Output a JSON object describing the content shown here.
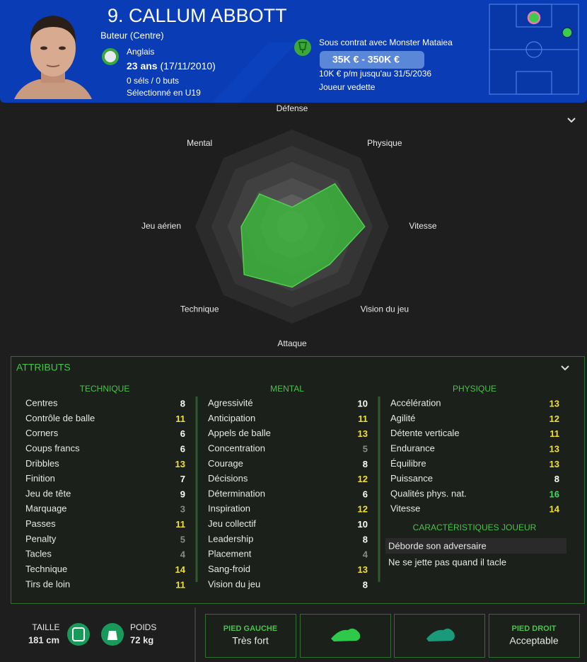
{
  "header": {
    "name": "9. CALLUM ABBOTT",
    "position": "Buteur (Centre)",
    "nationality": "Anglais",
    "age": "23 ans",
    "birth": "(17/11/2010)",
    "caps": "0 séls / 0 buts",
    "selection": "Sélectionné en U19",
    "contract": "Sous contrat avec Monster Mataiea",
    "wage_range": "35K € - 350K €",
    "wage": "10K € p/m jusqu'au 31/5/2036",
    "status": "Joueur vedette"
  },
  "radar": {
    "type": "radar",
    "axes": [
      "Défense",
      "Physique",
      "Vitesse",
      "Vision du jeu",
      "Attaque",
      "Technique",
      "Jeu aérien",
      "Mental"
    ],
    "values": [
      4,
      12.5,
      15,
      11,
      12.5,
      14,
      10.5,
      9.5
    ],
    "rlim": [
      0,
      20
    ],
    "color": "#3cb43c"
  },
  "attributes": {
    "title": "ATTRIBUTS",
    "columns": [
      {
        "title": "TECHNIQUE",
        "rows": [
          {
            "name": "Centres",
            "value": 8
          },
          {
            "name": "Contrôle de balle",
            "value": 11
          },
          {
            "name": "Corners",
            "value": 6
          },
          {
            "name": "Coups francs",
            "value": 6
          },
          {
            "name": "Dribbles",
            "value": 13
          },
          {
            "name": "Finition",
            "value": 7
          },
          {
            "name": "Jeu de tête",
            "value": 9
          },
          {
            "name": "Marquage",
            "value": 3
          },
          {
            "name": "Passes",
            "value": 11
          },
          {
            "name": "Penalty",
            "value": 5
          },
          {
            "name": "Tacles",
            "value": 4
          },
          {
            "name": "Technique",
            "value": 14
          },
          {
            "name": "Tirs de loin",
            "value": 11
          }
        ]
      },
      {
        "title": "MENTAL",
        "rows": [
          {
            "name": "Agressivité",
            "value": 10
          },
          {
            "name": "Anticipation",
            "value": 11
          },
          {
            "name": "Appels de balle",
            "value": 13
          },
          {
            "name": "Concentration",
            "value": 5
          },
          {
            "name": "Courage",
            "value": 8
          },
          {
            "name": "Décisions",
            "value": 12
          },
          {
            "name": "Détermination",
            "value": 6
          },
          {
            "name": "Inspiration",
            "value": 12
          },
          {
            "name": "Jeu collectif",
            "value": 10
          },
          {
            "name": "Leadership",
            "value": 8
          },
          {
            "name": "Placement",
            "value": 4
          },
          {
            "name": "Sang-froid",
            "value": 13
          },
          {
            "name": "Vision du jeu",
            "value": 8
          }
        ]
      },
      {
        "title": "PHYSIQUE",
        "rows": [
          {
            "name": "Accélération",
            "value": 13
          },
          {
            "name": "Agilité",
            "value": 12
          },
          {
            "name": "Détente verticale",
            "value": 11
          },
          {
            "name": "Endurance",
            "value": 13
          },
          {
            "name": "Équilibre",
            "value": 13
          },
          {
            "name": "Puissance",
            "value": 8
          },
          {
            "name": "Qualités phys. nat.",
            "value": 16
          },
          {
            "name": "Vitesse",
            "value": 14
          }
        ]
      }
    ],
    "traits": {
      "title": "CARACTÉRISTIQUES JOUEUR",
      "items": [
        "Déborde son adversaire",
        "Ne se jette pas quand il tacle"
      ]
    }
  },
  "footer": {
    "height_label": "TAILLE",
    "height": "181 cm",
    "weight_label": "POIDS",
    "weight": "72 kg",
    "left_foot_label": "PIED GAUCHE",
    "left_foot": "Très fort",
    "right_foot_label": "PIED DROIT",
    "right_foot": "Acceptable"
  }
}
